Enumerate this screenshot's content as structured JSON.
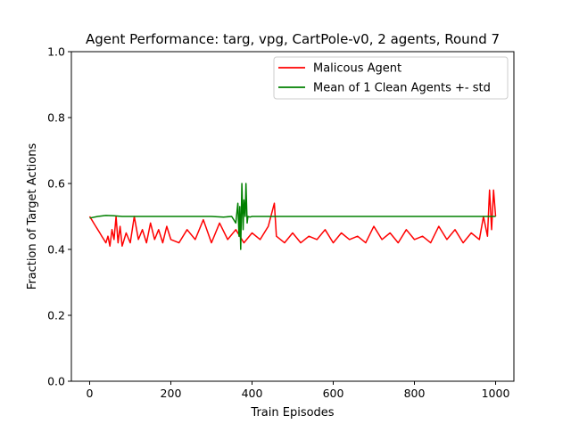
{
  "chart_data": {
    "type": "line",
    "title": "Agent Performance: targ, vpg, CartPole-v0, 2 agents, Round 7",
    "xlabel": "Train Episodes",
    "ylabel": "Fraction of Target Actions",
    "xlim": [
      -45,
      1045
    ],
    "ylim": [
      0.0,
      1.0
    ],
    "xticks": [
      0,
      200,
      400,
      600,
      800,
      1000
    ],
    "xtick_labels": [
      "0",
      "200",
      "400",
      "600",
      "800",
      "1000"
    ],
    "yticks": [
      0.0,
      0.2,
      0.4,
      0.6,
      0.8,
      1.0
    ],
    "ytick_labels": [
      "0.0",
      "0.2",
      "0.4",
      "0.6",
      "0.8",
      "1.0"
    ],
    "grid": false,
    "legend_position": "top-right",
    "series": [
      {
        "name": "Malicous Agent",
        "color": "#ff0000",
        "x": [
          0,
          5,
          10,
          15,
          20,
          25,
          30,
          35,
          40,
          45,
          50,
          55,
          60,
          65,
          70,
          75,
          80,
          90,
          100,
          110,
          120,
          130,
          140,
          150,
          160,
          170,
          180,
          190,
          200,
          220,
          240,
          260,
          280,
          300,
          320,
          340,
          360,
          380,
          400,
          420,
          440,
          455,
          460,
          480,
          500,
          520,
          540,
          560,
          580,
          600,
          620,
          640,
          660,
          680,
          700,
          720,
          740,
          760,
          780,
          800,
          820,
          840,
          860,
          880,
          900,
          920,
          940,
          960,
          970,
          980,
          985,
          990,
          995,
          1000
        ],
        "y": [
          0.5,
          0.49,
          0.48,
          0.47,
          0.46,
          0.45,
          0.44,
          0.43,
          0.42,
          0.44,
          0.41,
          0.46,
          0.43,
          0.5,
          0.42,
          0.47,
          0.41,
          0.45,
          0.42,
          0.5,
          0.43,
          0.46,
          0.42,
          0.48,
          0.43,
          0.46,
          0.42,
          0.47,
          0.43,
          0.42,
          0.46,
          0.43,
          0.49,
          0.42,
          0.48,
          0.43,
          0.46,
          0.42,
          0.45,
          0.43,
          0.47,
          0.54,
          0.44,
          0.42,
          0.45,
          0.42,
          0.44,
          0.43,
          0.46,
          0.42,
          0.45,
          0.43,
          0.44,
          0.42,
          0.47,
          0.43,
          0.45,
          0.42,
          0.46,
          0.43,
          0.44,
          0.42,
          0.47,
          0.43,
          0.46,
          0.42,
          0.45,
          0.43,
          0.5,
          0.44,
          0.58,
          0.46,
          0.58,
          0.5
        ]
      },
      {
        "name": "Mean of 1 Clean Agents +- std",
        "color": "#008000",
        "x": [
          0,
          20,
          40,
          60,
          80,
          100,
          150,
          200,
          250,
          300,
          330,
          350,
          360,
          365,
          368,
          370,
          372,
          375,
          378,
          380,
          383,
          385,
          388,
          390,
          395,
          400,
          450,
          500,
          600,
          700,
          800,
          900,
          1000
        ],
        "y": [
          0.495,
          0.5,
          0.503,
          0.502,
          0.5,
          0.5,
          0.5,
          0.5,
          0.5,
          0.5,
          0.498,
          0.5,
          0.48,
          0.54,
          0.44,
          0.53,
          0.4,
          0.6,
          0.46,
          0.55,
          0.5,
          0.6,
          0.48,
          0.5,
          0.498,
          0.5,
          0.5,
          0.5,
          0.5,
          0.5,
          0.5,
          0.5,
          0.5
        ]
      }
    ]
  }
}
